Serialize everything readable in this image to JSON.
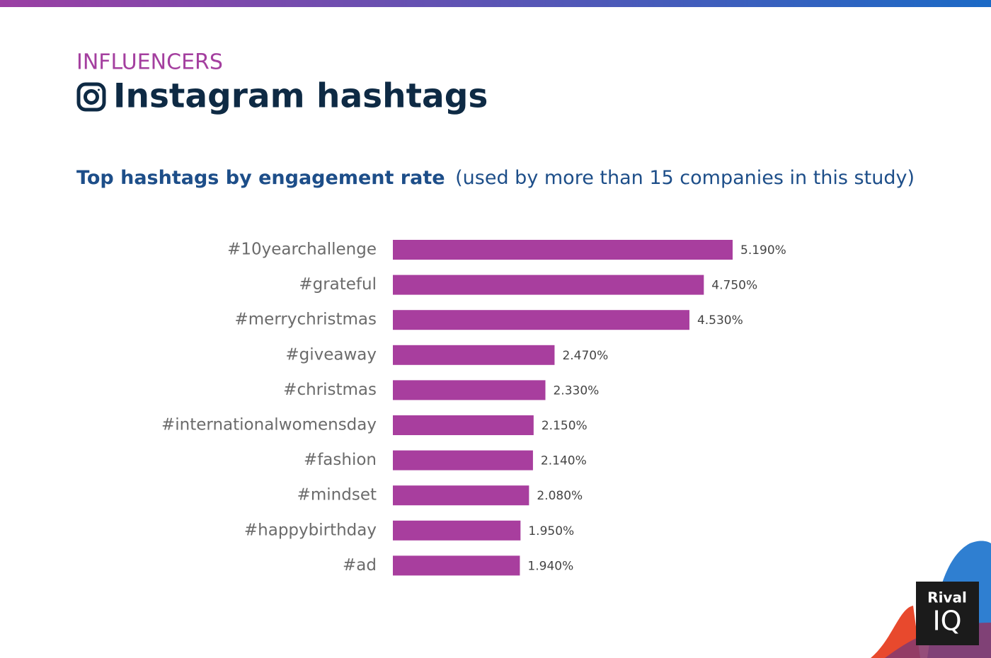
{
  "header": {
    "section": "INFLUENCERS",
    "title": "Instagram hashtags"
  },
  "chart_data": {
    "type": "bar",
    "orientation": "horizontal",
    "title": "Top hashtags by engagement rate",
    "subtitle": "(used by more than 15 companies in this study)",
    "categories": [
      "#10yearchallenge",
      "#grateful",
      "#merrychristmas",
      "#giveaway",
      "#christmas",
      "#internationalwomensday",
      "#fashion",
      "#mindset",
      "#happybirthday",
      "#ad"
    ],
    "values": [
      5.19,
      4.75,
      4.53,
      2.47,
      2.33,
      2.15,
      2.14,
      2.08,
      1.95,
      1.94
    ],
    "value_labels": [
      "5.190%",
      "4.750%",
      "4.530%",
      "2.470%",
      "2.330%",
      "2.150%",
      "2.140%",
      "2.080%",
      "1.950%",
      "1.940%"
    ],
    "color": "#a83e9e"
  },
  "logo": {
    "line1": "Rival",
    "line2": "IQ"
  }
}
